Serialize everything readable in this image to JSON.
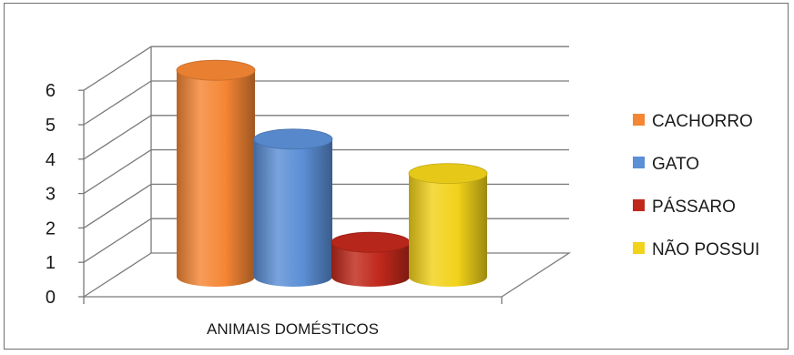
{
  "chart_data": {
    "type": "bar",
    "title": "",
    "xlabel": "",
    "ylabel": "",
    "categories": [
      "ANIMAIS DOMÉSTICOS"
    ],
    "ylim": [
      0,
      6
    ],
    "yticks": [
      0,
      1,
      2,
      3,
      4,
      5,
      6
    ],
    "grid": true,
    "style": "3d-cylinder",
    "legend": "right",
    "series": [
      {
        "name": "CACHORRO",
        "values": [
          6
        ],
        "color": "#f58634"
      },
      {
        "name": "GATO",
        "values": [
          4
        ],
        "color": "#5b8fd6"
      },
      {
        "name": "PÁSSARO",
        "values": [
          1
        ],
        "color": "#c0281b"
      },
      {
        "name": "NÃO POSSUI",
        "values": [
          3
        ],
        "color": "#f2d21a"
      }
    ]
  }
}
